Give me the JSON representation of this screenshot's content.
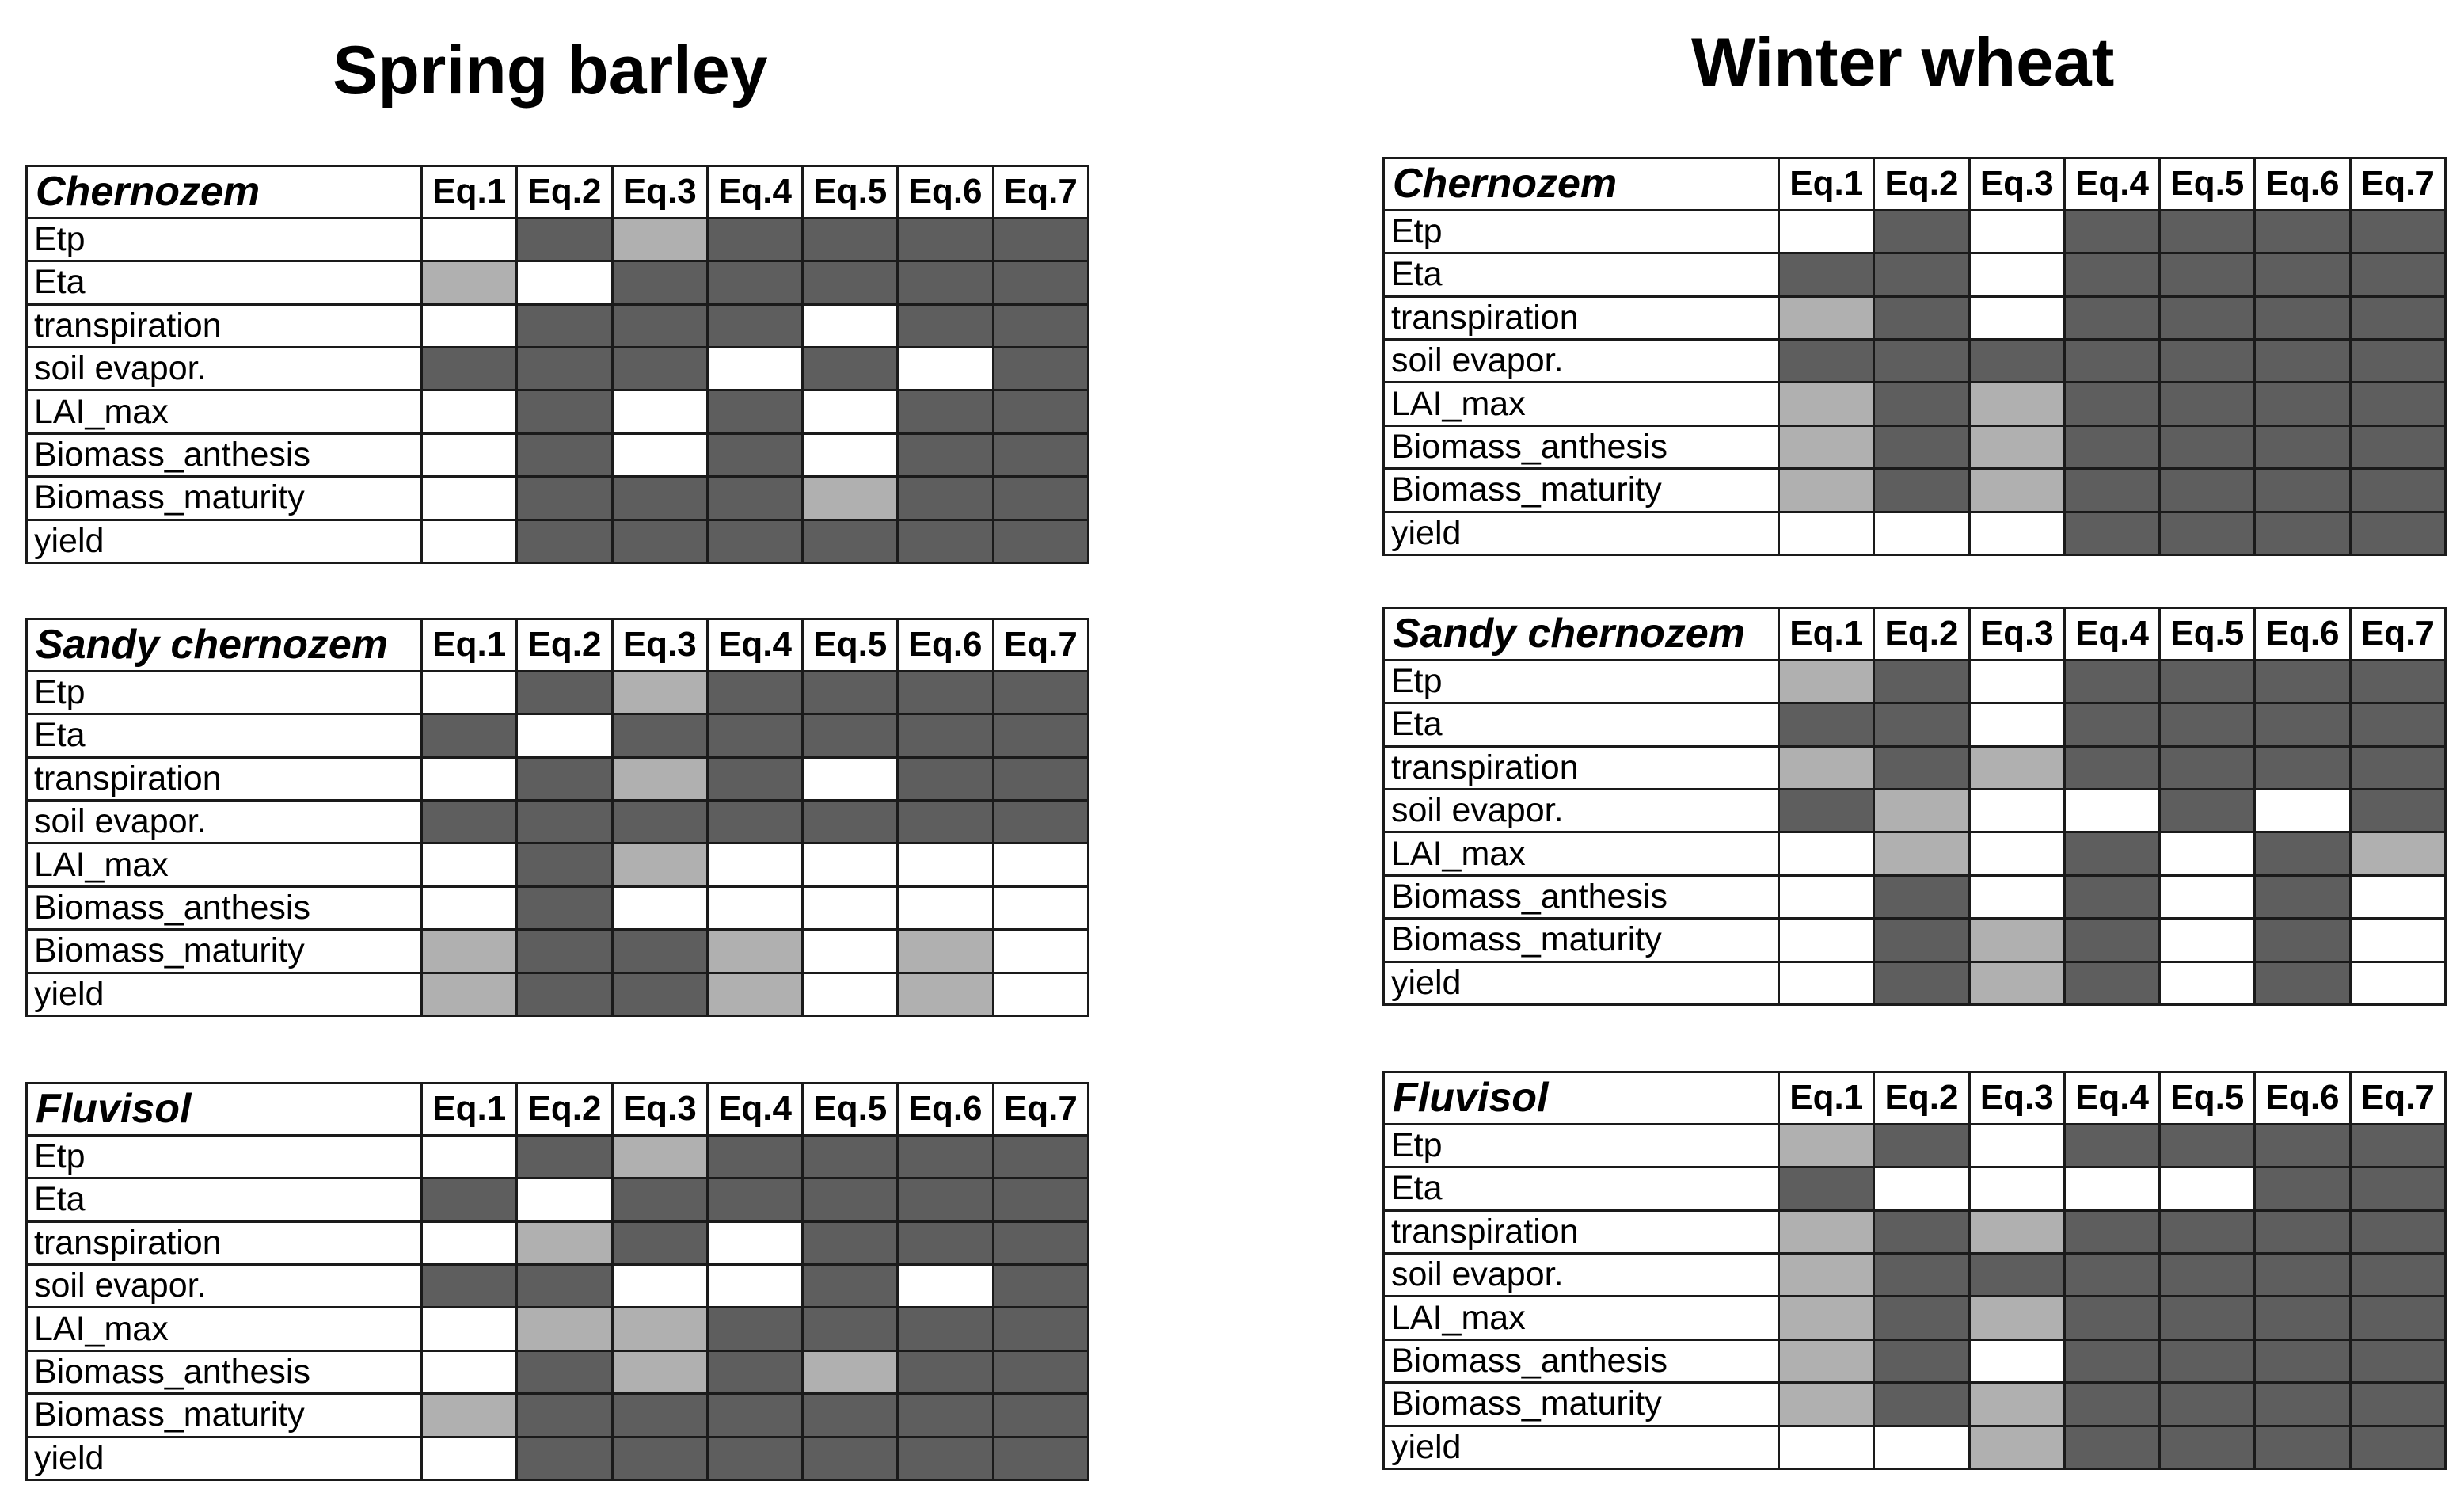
{
  "legend_colors": {
    "high": "#5e5e5e",
    "medium": "#b0b0b0",
    "low": "#ffffff"
  },
  "chart_data": {
    "type": "heatmap",
    "value_scale": "0 = white, 1 = light grey, 2 = dark grey",
    "columns": [
      "Eq.1",
      "Eq.2",
      "Eq.3",
      "Eq.4",
      "Eq.5",
      "Eq.6",
      "Eq.7"
    ],
    "rows": [
      "Etp",
      "Eta",
      "transpiration",
      "soil evapor.",
      "LAI_max",
      "Biomass_anthesis",
      "Biomass_maturity",
      "yield"
    ],
    "crops": [
      {
        "title": "Spring barley",
        "panels": [
          {
            "soil": "Chernozem",
            "values": [
              [
                0,
                2,
                1,
                2,
                2,
                2,
                2
              ],
              [
                1,
                0,
                2,
                2,
                2,
                2,
                2
              ],
              [
                0,
                2,
                2,
                2,
                0,
                2,
                2
              ],
              [
                2,
                2,
                2,
                0,
                2,
                0,
                2
              ],
              [
                0,
                2,
                0,
                2,
                0,
                2,
                2
              ],
              [
                0,
                2,
                0,
                2,
                0,
                2,
                2
              ],
              [
                0,
                2,
                2,
                2,
                1,
                2,
                2
              ],
              [
                0,
                2,
                2,
                2,
                2,
                2,
                2
              ]
            ]
          },
          {
            "soil": "Sandy chernozem",
            "values": [
              [
                0,
                2,
                1,
                2,
                2,
                2,
                2
              ],
              [
                2,
                0,
                2,
                2,
                2,
                2,
                2
              ],
              [
                0,
                2,
                1,
                2,
                0,
                2,
                2
              ],
              [
                2,
                2,
                2,
                2,
                2,
                2,
                2
              ],
              [
                0,
                2,
                1,
                0,
                0,
                0,
                0
              ],
              [
                0,
                2,
                0,
                0,
                0,
                0,
                0
              ],
              [
                1,
                2,
                2,
                1,
                0,
                1,
                0
              ],
              [
                1,
                2,
                2,
                1,
                0,
                1,
                0
              ]
            ]
          },
          {
            "soil": "Fluvisol",
            "values": [
              [
                0,
                2,
                1,
                2,
                2,
                2,
                2
              ],
              [
                2,
                0,
                2,
                2,
                2,
                2,
                2
              ],
              [
                0,
                1,
                2,
                0,
                2,
                2,
                2
              ],
              [
                2,
                2,
                0,
                0,
                2,
                0,
                2
              ],
              [
                0,
                1,
                1,
                2,
                2,
                2,
                2
              ],
              [
                0,
                2,
                1,
                2,
                1,
                2,
                2
              ],
              [
                1,
                2,
                2,
                2,
                2,
                2,
                2
              ],
              [
                0,
                2,
                2,
                2,
                2,
                2,
                2
              ]
            ]
          }
        ]
      },
      {
        "title": "Winter wheat",
        "panels": [
          {
            "soil": "Chernozem",
            "values": [
              [
                0,
                2,
                0,
                2,
                2,
                2,
                2
              ],
              [
                2,
                2,
                0,
                2,
                2,
                2,
                2
              ],
              [
                1,
                2,
                0,
                2,
                2,
                2,
                2
              ],
              [
                2,
                2,
                2,
                2,
                2,
                2,
                2
              ],
              [
                1,
                2,
                1,
                2,
                2,
                2,
                2
              ],
              [
                1,
                2,
                1,
                2,
                2,
                2,
                2
              ],
              [
                1,
                2,
                1,
                2,
                2,
                2,
                2
              ],
              [
                0,
                0,
                0,
                2,
                2,
                2,
                2
              ]
            ]
          },
          {
            "soil": "Sandy chernozem",
            "values": [
              [
                1,
                2,
                0,
                2,
                2,
                2,
                2
              ],
              [
                2,
                2,
                0,
                2,
                2,
                2,
                2
              ],
              [
                1,
                2,
                1,
                2,
                2,
                2,
                2
              ],
              [
                2,
                1,
                0,
                0,
                2,
                0,
                2
              ],
              [
                0,
                1,
                0,
                2,
                0,
                2,
                1
              ],
              [
                0,
                2,
                0,
                2,
                0,
                2,
                0
              ],
              [
                0,
                2,
                1,
                2,
                0,
                2,
                0
              ],
              [
                0,
                2,
                1,
                2,
                0,
                2,
                0
              ]
            ]
          },
          {
            "soil": "Fluvisol",
            "values": [
              [
                1,
                2,
                0,
                2,
                2,
                2,
                2
              ],
              [
                2,
                0,
                0,
                0,
                0,
                2,
                2
              ],
              [
                1,
                2,
                1,
                2,
                2,
                2,
                2
              ],
              [
                1,
                2,
                2,
                2,
                2,
                2,
                2
              ],
              [
                1,
                2,
                1,
                2,
                2,
                2,
                2
              ],
              [
                1,
                2,
                0,
                2,
                2,
                2,
                2
              ],
              [
                1,
                2,
                1,
                2,
                2,
                2,
                2
              ],
              [
                0,
                0,
                1,
                2,
                2,
                2,
                2
              ]
            ]
          }
        ]
      }
    ]
  }
}
